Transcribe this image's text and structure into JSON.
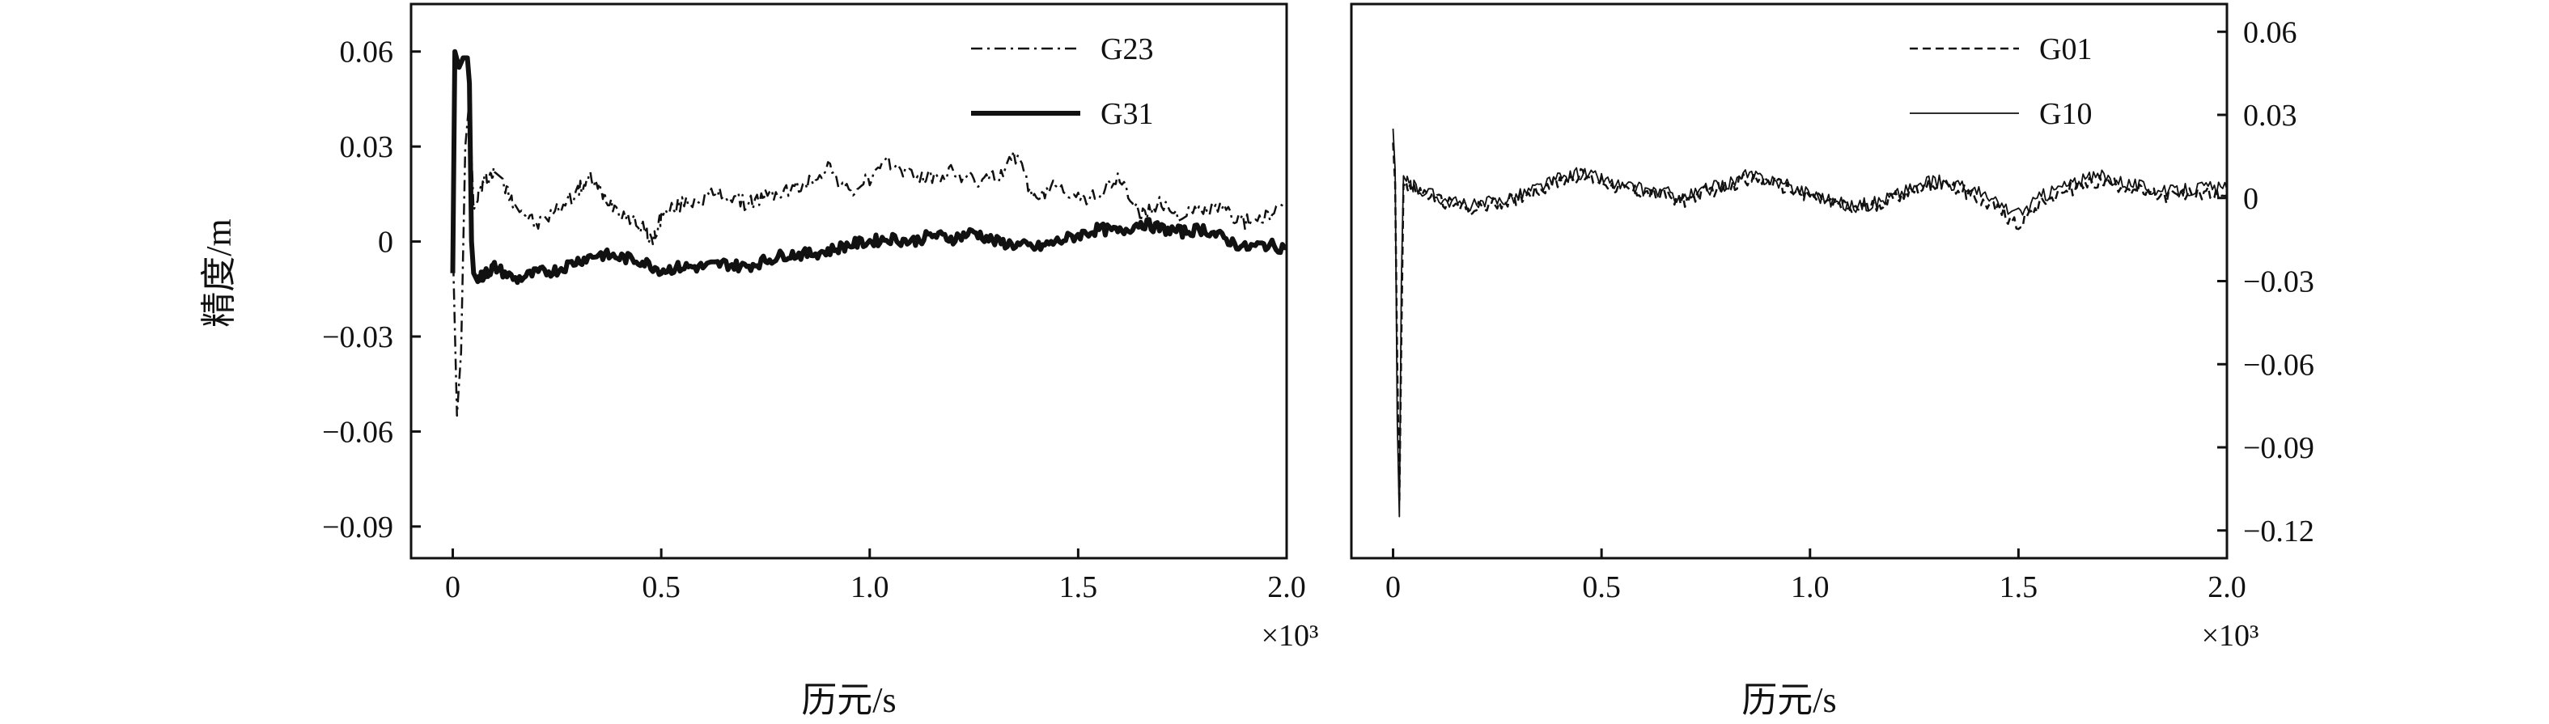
{
  "chart_data": [
    {
      "type": "line",
      "panel": "left",
      "ylabel": "精度/m",
      "xlabel": "历元/s",
      "x_multiplier_label": "×10³",
      "xlim": [
        -0.1,
        2.0
      ],
      "ylim": [
        -0.1,
        0.075
      ],
      "x_ticks": [
        0,
        0.5,
        1.0,
        1.5,
        2.0
      ],
      "x_tick_labels": [
        "0",
        "0.5",
        "1.0",
        "1.5",
        "2.0"
      ],
      "y_ticks": [
        0.06,
        0.03,
        0,
        -0.03,
        -0.06,
        -0.09
      ],
      "y_tick_labels": [
        "0.06",
        "0.03",
        "0",
        "−0.03",
        "−0.06",
        "−0.09"
      ],
      "y_axis_side": "left",
      "legend_position": "top-right",
      "grid": false,
      "series": [
        {
          "name": "G23",
          "style": "dash-dot",
          "x": [
            0.0,
            0.01,
            0.02,
            0.03,
            0.04,
            0.05,
            0.06,
            0.08,
            0.1,
            0.12,
            0.15,
            0.2,
            0.25,
            0.3,
            0.33,
            0.36,
            0.4,
            0.45,
            0.48,
            0.5,
            0.55,
            0.6,
            0.65,
            0.7,
            0.75,
            0.8,
            0.85,
            0.9,
            0.95,
            1.0,
            1.05,
            1.1,
            1.15,
            1.2,
            1.25,
            1.3,
            1.35,
            1.4,
            1.45,
            1.5,
            1.55,
            1.6,
            1.65,
            1.7,
            1.75,
            1.8,
            1.85,
            1.9,
            1.95,
            2.0
          ],
          "values": [
            0.0,
            -0.055,
            -0.035,
            0.03,
            0.045,
            0.01,
            0.015,
            0.02,
            0.022,
            0.018,
            0.012,
            0.005,
            0.01,
            0.016,
            0.02,
            0.015,
            0.01,
            0.005,
            0.0,
            0.008,
            0.012,
            0.014,
            0.015,
            0.012,
            0.014,
            0.016,
            0.018,
            0.024,
            0.015,
            0.02,
            0.025,
            0.021,
            0.02,
            0.022,
            0.019,
            0.02,
            0.027,
            0.012,
            0.019,
            0.013,
            0.015,
            0.02,
            0.008,
            0.012,
            0.008,
            0.01,
            0.01,
            0.006,
            0.008,
            0.01
          ]
        },
        {
          "name": "G31",
          "style": "solid-thick",
          "x": [
            0.0,
            0.005,
            0.015,
            0.025,
            0.035,
            0.04,
            0.045,
            0.05,
            0.06,
            0.08,
            0.1,
            0.15,
            0.2,
            0.25,
            0.3,
            0.35,
            0.4,
            0.45,
            0.5,
            0.55,
            0.6,
            0.65,
            0.7,
            0.75,
            0.8,
            0.85,
            0.9,
            0.95,
            1.0,
            1.05,
            1.1,
            1.15,
            1.2,
            1.25,
            1.3,
            1.35,
            1.4,
            1.45,
            1.5,
            1.55,
            1.6,
            1.65,
            1.7,
            1.75,
            1.8,
            1.85,
            1.9,
            1.95,
            2.0
          ],
          "values": [
            -0.01,
            0.06,
            0.055,
            0.058,
            0.058,
            0.05,
            0.0,
            -0.01,
            -0.012,
            -0.01,
            -0.008,
            -0.012,
            -0.01,
            -0.009,
            -0.006,
            -0.004,
            -0.005,
            -0.006,
            -0.009,
            -0.008,
            -0.008,
            -0.007,
            -0.008,
            -0.006,
            -0.004,
            -0.004,
            -0.003,
            -0.001,
            0.0,
            0.001,
            0.0,
            0.002,
            0.001,
            0.003,
            0.0,
            -0.001,
            -0.002,
            0.0,
            0.002,
            0.004,
            0.003,
            0.006,
            0.004,
            0.003,
            0.004,
            0.001,
            -0.002,
            -0.001,
            -0.002
          ]
        }
      ]
    },
    {
      "type": "line",
      "panel": "right",
      "ylabel": "",
      "xlabel": "历元/s",
      "x_multiplier_label": "×10³",
      "xlim": [
        -0.1,
        2.0
      ],
      "ylim": [
        -0.13,
        0.07
      ],
      "x_ticks": [
        0,
        0.5,
        1.0,
        1.5,
        2.0
      ],
      "x_tick_labels": [
        "0",
        "0.5",
        "1.0",
        "1.5",
        "2.0"
      ],
      "y_ticks": [
        0.06,
        0.03,
        0,
        -0.03,
        -0.06,
        -0.09,
        -0.12
      ],
      "y_tick_labels": [
        "0.06",
        "0.03",
        "0",
        "−0.03",
        "−0.06",
        "−0.09",
        "−0.12"
      ],
      "y_axis_side": "right",
      "legend_position": "top-right",
      "grid": false,
      "series": [
        {
          "name": "G01",
          "style": "dashed",
          "x": [
            0.0,
            0.005,
            0.01,
            0.015,
            0.02,
            0.025,
            0.03,
            0.05,
            0.1,
            0.15,
            0.2,
            0.25,
            0.3,
            0.35,
            0.4,
            0.45,
            0.5,
            0.55,
            0.6,
            0.65,
            0.7,
            0.75,
            0.8,
            0.85,
            0.9,
            0.95,
            1.0,
            1.05,
            1.1,
            1.15,
            1.2,
            1.25,
            1.3,
            1.35,
            1.4,
            1.45,
            1.5,
            1.55,
            1.6,
            1.65,
            1.7,
            1.75,
            1.8,
            1.85,
            1.9,
            1.95,
            2.0
          ],
          "values": [
            0.02,
            0.005,
            -0.06,
            -0.11,
            -0.05,
            0.005,
            0.005,
            0.003,
            0.0,
            -0.003,
            -0.004,
            -0.002,
            0.0,
            0.003,
            0.006,
            0.008,
            0.006,
            0.003,
            0.002,
            0.001,
            -0.001,
            0.002,
            0.004,
            0.007,
            0.006,
            0.003,
            0.001,
            -0.002,
            -0.004,
            -0.003,
            0.0,
            0.003,
            0.005,
            0.004,
            0.0,
            -0.004,
            -0.01,
            -0.002,
            0.002,
            0.004,
            0.006,
            0.004,
            0.002,
            0.0,
            0.001,
            0.002,
            0.001
          ]
        },
        {
          "name": "G10",
          "style": "solid-thin",
          "x": [
            0.0,
            0.005,
            0.01,
            0.015,
            0.02,
            0.025,
            0.03,
            0.05,
            0.1,
            0.15,
            0.2,
            0.25,
            0.3,
            0.35,
            0.4,
            0.45,
            0.5,
            0.55,
            0.6,
            0.65,
            0.7,
            0.75,
            0.8,
            0.85,
            0.9,
            0.95,
            1.0,
            1.05,
            1.1,
            1.15,
            1.2,
            1.25,
            1.3,
            1.35,
            1.4,
            1.45,
            1.5,
            1.55,
            1.6,
            1.65,
            1.7,
            1.75,
            1.8,
            1.85,
            1.9,
            1.95,
            2.0
          ],
          "values": [
            0.025,
            0.01,
            -0.08,
            -0.115,
            -0.03,
            0.008,
            0.006,
            0.004,
            0.001,
            -0.002,
            -0.003,
            -0.001,
            0.001,
            0.004,
            0.007,
            0.009,
            0.007,
            0.004,
            0.003,
            0.002,
            0.0,
            0.003,
            0.005,
            0.008,
            0.007,
            0.004,
            0.002,
            -0.001,
            -0.003,
            -0.002,
            0.001,
            0.004,
            0.006,
            0.005,
            0.002,
            -0.002,
            -0.006,
            0.0,
            0.004,
            0.006,
            0.008,
            0.006,
            0.004,
            0.002,
            0.003,
            0.004,
            0.003
          ]
        }
      ]
    }
  ]
}
